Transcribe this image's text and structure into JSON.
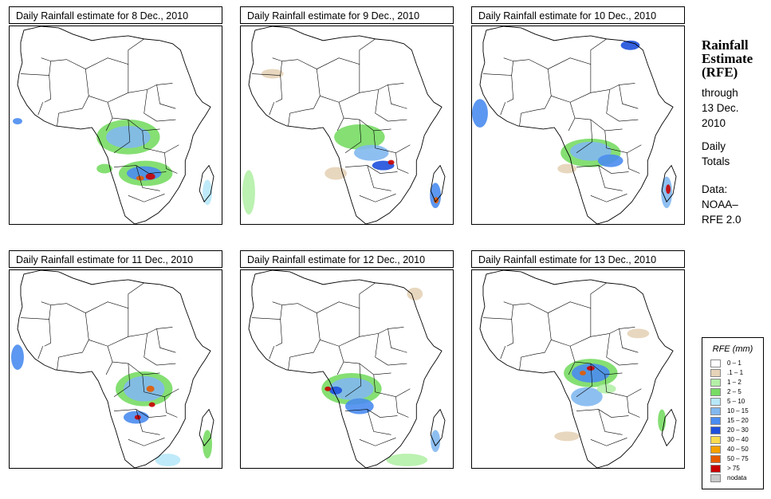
{
  "panels": [
    {
      "title": "Daily Rainfall estimate for  8 Dec., 2010"
    },
    {
      "title": "Daily Rainfall estimate for  9 Dec., 2010"
    },
    {
      "title": "Daily Rainfall estimate for  10 Dec., 2010"
    },
    {
      "title": "Daily Rainfall estimate for  11 Dec., 2010"
    },
    {
      "title": "Daily Rainfall estimate for  12 Dec., 2010"
    },
    {
      "title": "Daily Rainfall estimate for  13 Dec., 2010"
    }
  ],
  "sidebar": {
    "heading_line1": "Rainfall",
    "heading_line2": "Estimate",
    "heading_line3": "(RFE)",
    "through": "through",
    "date_line1": "13 Dec.",
    "date_line2": "2010",
    "totals_line1": "Daily",
    "totals_line2": "Totals",
    "data_label": "Data:",
    "source_line1": "NOAA–",
    "source_line2": "RFE 2.0"
  },
  "legend": {
    "title": "RFE (mm)",
    "items": [
      {
        "label": "0 – 1",
        "color": "#ffffff"
      },
      {
        "label": ".1 – 1",
        "color": "#e6d3b8"
      },
      {
        "label": "1 – 2",
        "color": "#b4f0a8"
      },
      {
        "label": "2 – 5",
        "color": "#78dc64"
      },
      {
        "label": "5 – 10",
        "color": "#b8e8f8"
      },
      {
        "label": "10 – 15",
        "color": "#82b8f0"
      },
      {
        "label": "15 – 20",
        "color": "#4a8cf0"
      },
      {
        "label": "20 – 30",
        "color": "#1e50dc"
      },
      {
        "label": "30 – 40",
        "color": "#fadc50"
      },
      {
        "label": "40 – 50",
        "color": "#f5a000"
      },
      {
        "label": "50 – 75",
        "color": "#e65a00"
      },
      {
        "label": "> 75",
        "color": "#c80000"
      },
      {
        "label": "nodata",
        "color": "#c8c8c8"
      }
    ]
  }
}
